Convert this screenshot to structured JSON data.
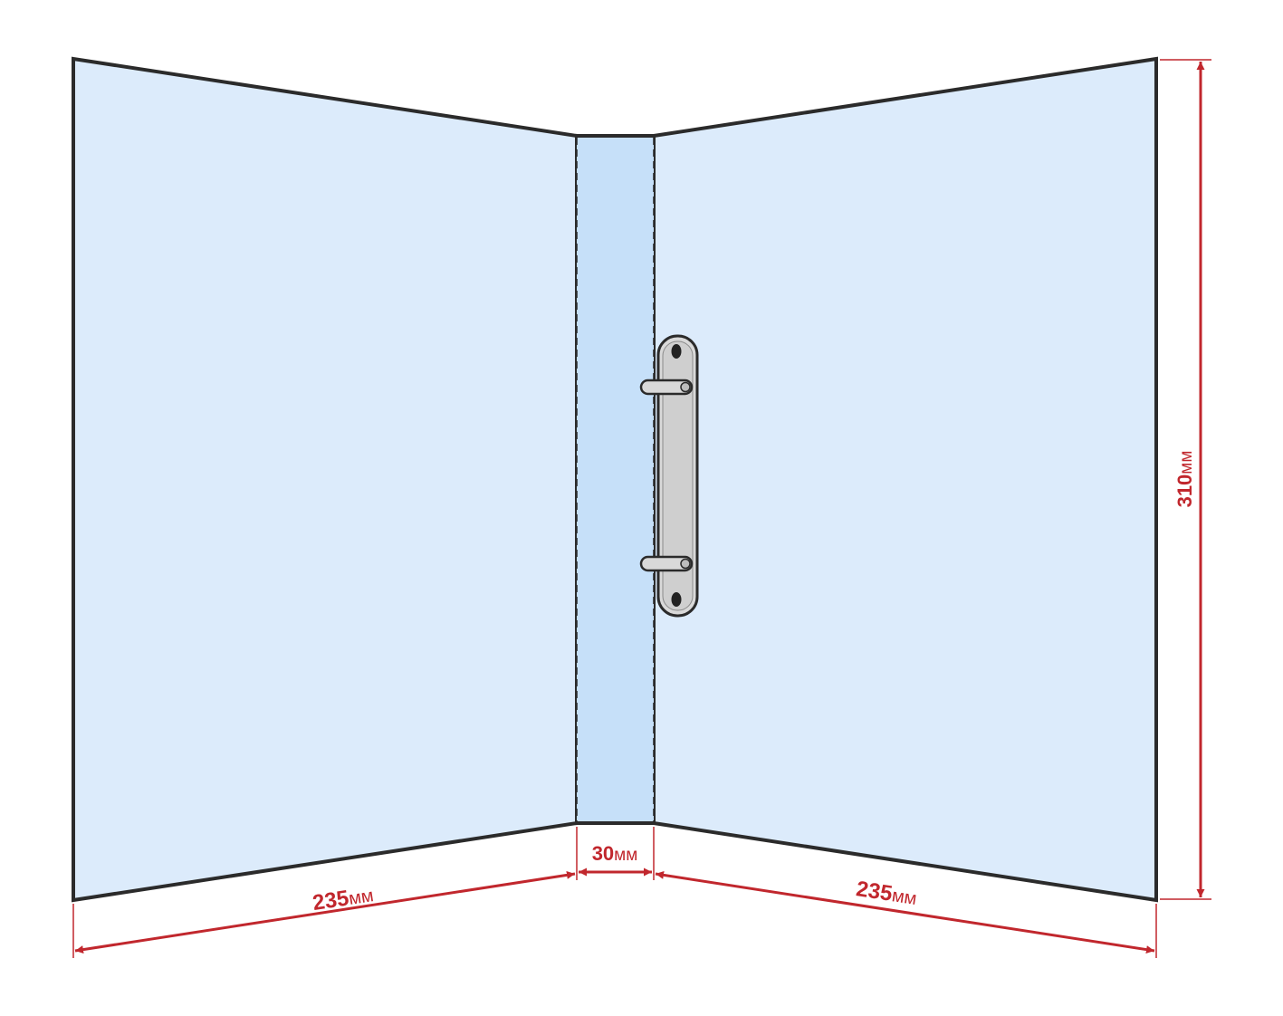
{
  "colors": {
    "cover_fill": "#dcebfb",
    "spine_fill": "#c6e0f9",
    "outline": "#2b2b2b",
    "dimension": "#c1272d",
    "mechanism_fill": "#d9d9d9"
  },
  "dimensions": {
    "left_width": {
      "number": "235",
      "unit": "мм"
    },
    "spine_width": {
      "number": "30",
      "unit": "мм"
    },
    "right_width": {
      "number": "235",
      "unit": "мм"
    },
    "height": {
      "number": "310",
      "unit": "мм"
    }
  }
}
